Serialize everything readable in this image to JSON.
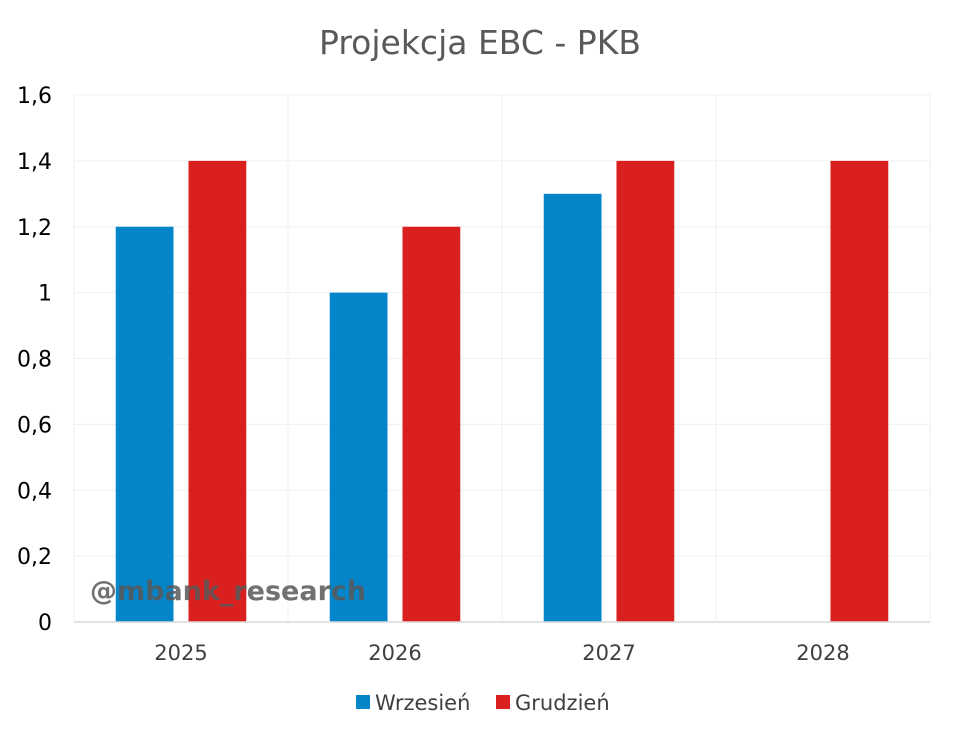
{
  "watermark": "@mbank_research",
  "chart_data": {
    "type": "bar",
    "title": "Projekcja EBC - PKB",
    "xlabel": "",
    "ylabel": "",
    "categories": [
      "2025",
      "2026",
      "2027",
      "2028"
    ],
    "series": [
      {
        "name": "Wrzesień",
        "color": "#0485C9",
        "values": [
          1.2,
          1.0,
          1.3,
          null
        ]
      },
      {
        "name": "Grudzień",
        "color": "#DA1F1F",
        "values": [
          1.4,
          1.2,
          1.4,
          1.4
        ]
      }
    ],
    "ylim": [
      0,
      1.6
    ],
    "yticks": [
      {
        "value": 0,
        "label": "0"
      },
      {
        "value": 0.2,
        "label": "0,2"
      },
      {
        "value": 0.4,
        "label": "0,4"
      },
      {
        "value": 0.6,
        "label": "0,6"
      },
      {
        "value": 0.8,
        "label": "0,8"
      },
      {
        "value": 1.0,
        "label": "1"
      },
      {
        "value": 1.2,
        "label": "1,2"
      },
      {
        "value": 1.4,
        "label": "1,4"
      },
      {
        "value": 1.6,
        "label": "1,6"
      }
    ],
    "grid": true,
    "legend": "bottom"
  }
}
